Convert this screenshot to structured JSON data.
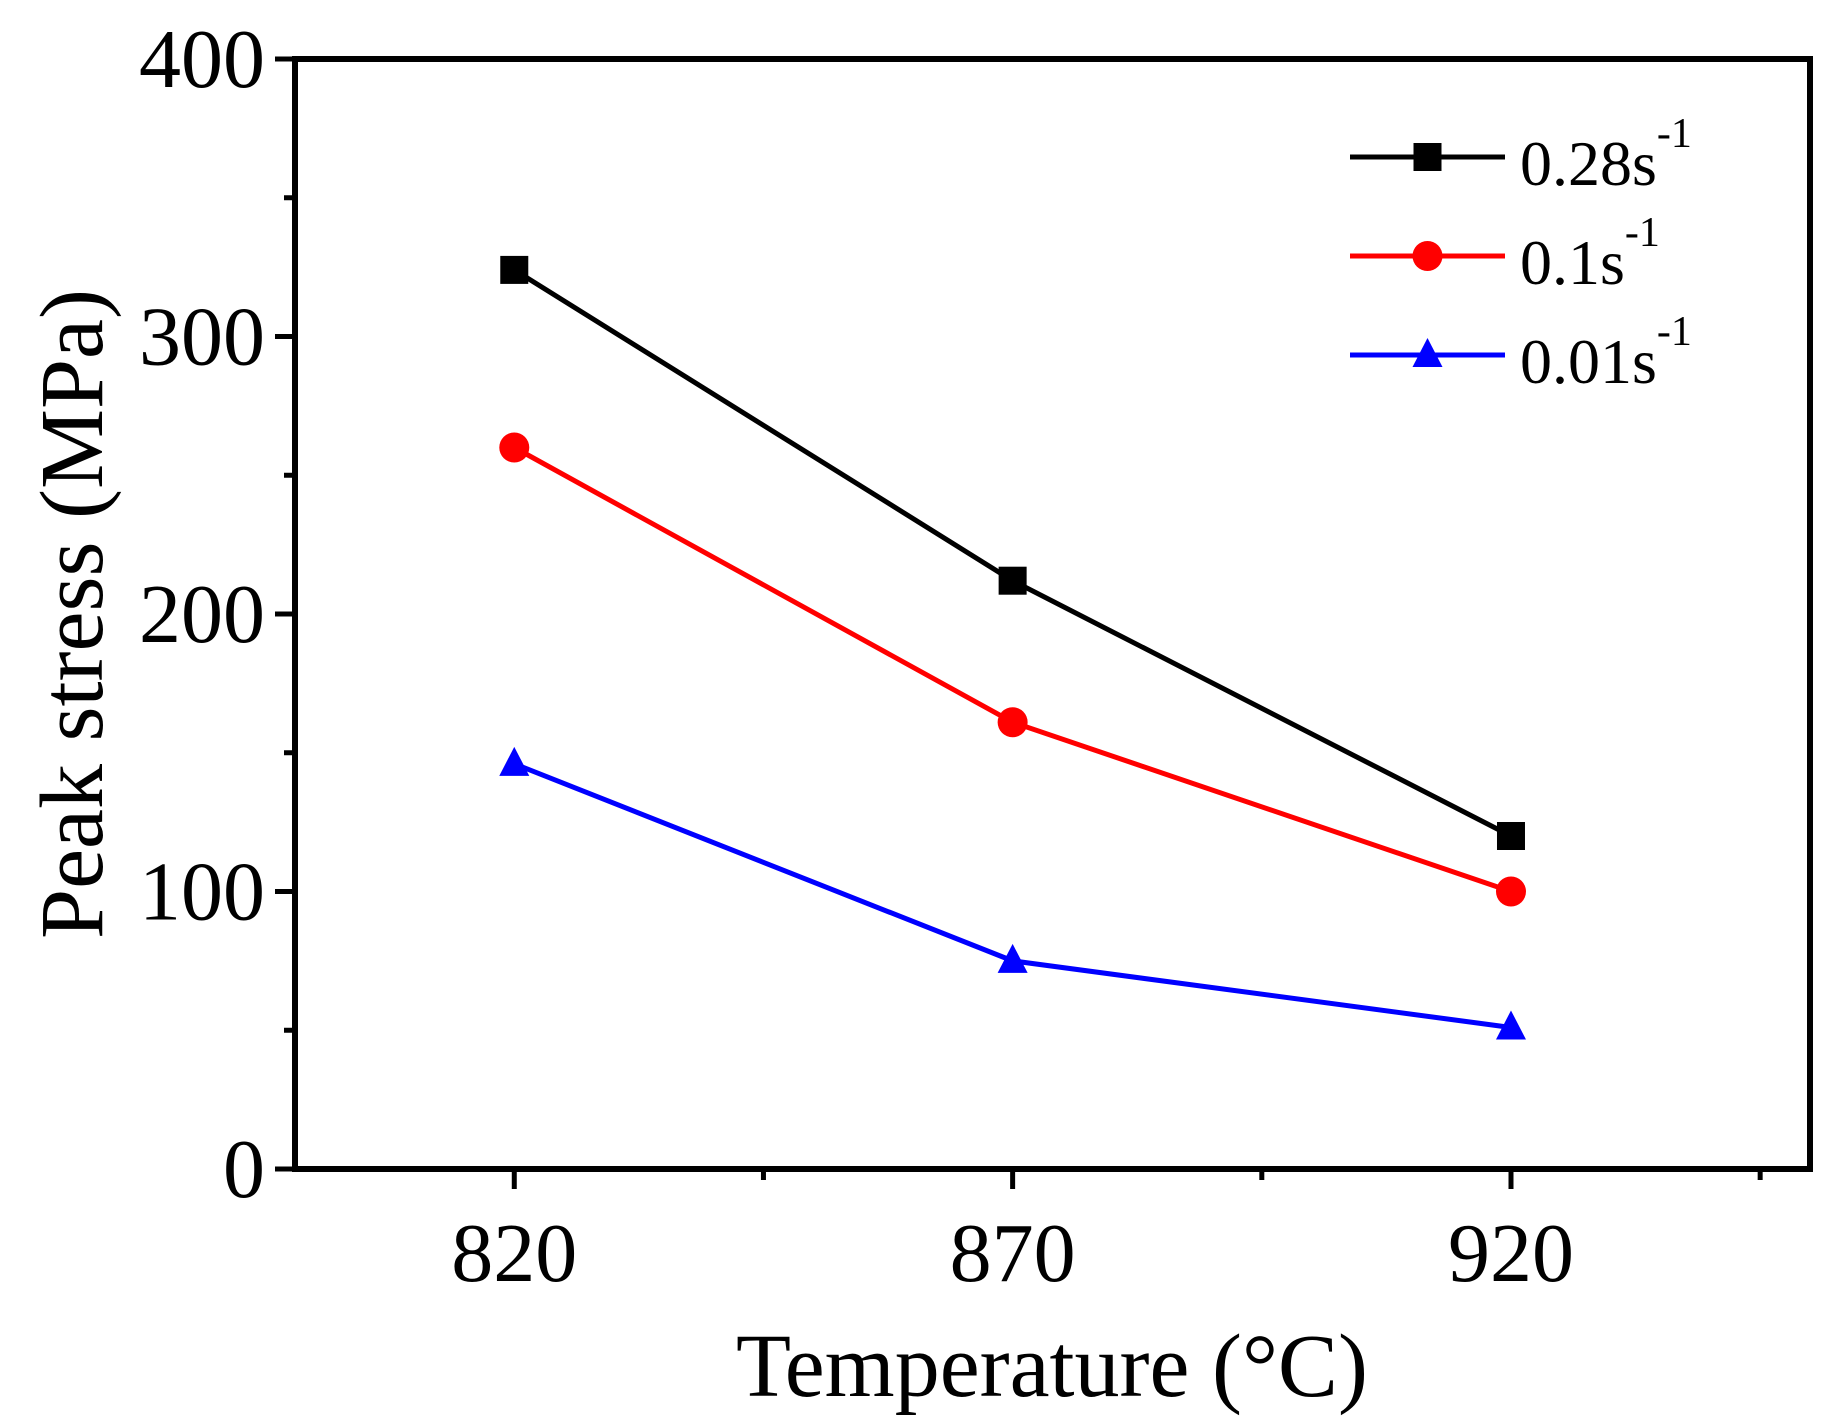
{
  "chart_data": {
    "type": "line",
    "title": "",
    "xlabel": "Temperature (°C)",
    "ylabel": "Peak stress (MPa)",
    "categories": [
      "820",
      "870",
      "920"
    ],
    "x": [
      820,
      870,
      920
    ],
    "xlim": [
      798,
      950
    ],
    "ylim": [
      0,
      400
    ],
    "yticks": [
      "0",
      "100",
      "200",
      "300",
      "400"
    ],
    "grid": false,
    "legend_position": "top-right",
    "series": [
      {
        "name": "0.28s",
        "superscript": "-1",
        "marker": "square",
        "color": "#000000",
        "values": [
          324,
          212,
          120
        ]
      },
      {
        "name": "0.1s",
        "superscript": "-1",
        "marker": "circle",
        "color": "#ff0000",
        "values": [
          260,
          161,
          100
        ]
      },
      {
        "name": "0.01s",
        "superscript": "-1",
        "marker": "triangle",
        "color": "#0000ff",
        "values": [
          146,
          75,
          51
        ]
      }
    ]
  }
}
